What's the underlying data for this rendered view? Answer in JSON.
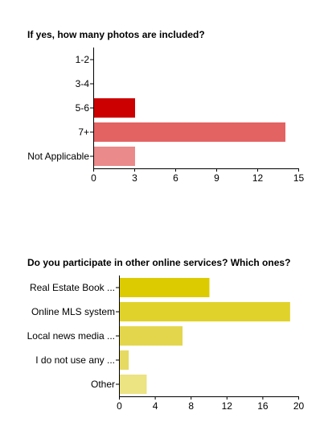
{
  "chart_data": [
    {
      "type": "bar",
      "orientation": "horizontal",
      "title": "If yes, how many photos are included?",
      "categories": [
        "1-2",
        "3-4",
        "5-6",
        "7+",
        "Not Applicable"
      ],
      "values": [
        0,
        0,
        3,
        14,
        3
      ],
      "colors": [
        "#cc0000",
        "#cc0000",
        "#cc0000",
        "#e36363",
        "#ea8a8a"
      ],
      "xlim": [
        0,
        15
      ],
      "xticks": [
        0,
        3,
        6,
        9,
        12,
        15
      ],
      "grid": false,
      "legend": "none"
    },
    {
      "type": "bar",
      "orientation": "horizontal",
      "title": "Do you participate in other online services? Which ones?",
      "categories": [
        "Real Estate Book ...",
        "Online MLS system",
        "Local news media ...",
        "I do not use any ...",
        "Other"
      ],
      "values": [
        10,
        19,
        7,
        1,
        3
      ],
      "colors": [
        "#dccb00",
        "#e0d22a",
        "#e3d64c",
        "#e6da63",
        "#ece383"
      ],
      "xlim": [
        0,
        20
      ],
      "xticks": [
        0,
        4,
        8,
        12,
        16,
        20
      ],
      "grid": false,
      "legend": "none"
    }
  ]
}
